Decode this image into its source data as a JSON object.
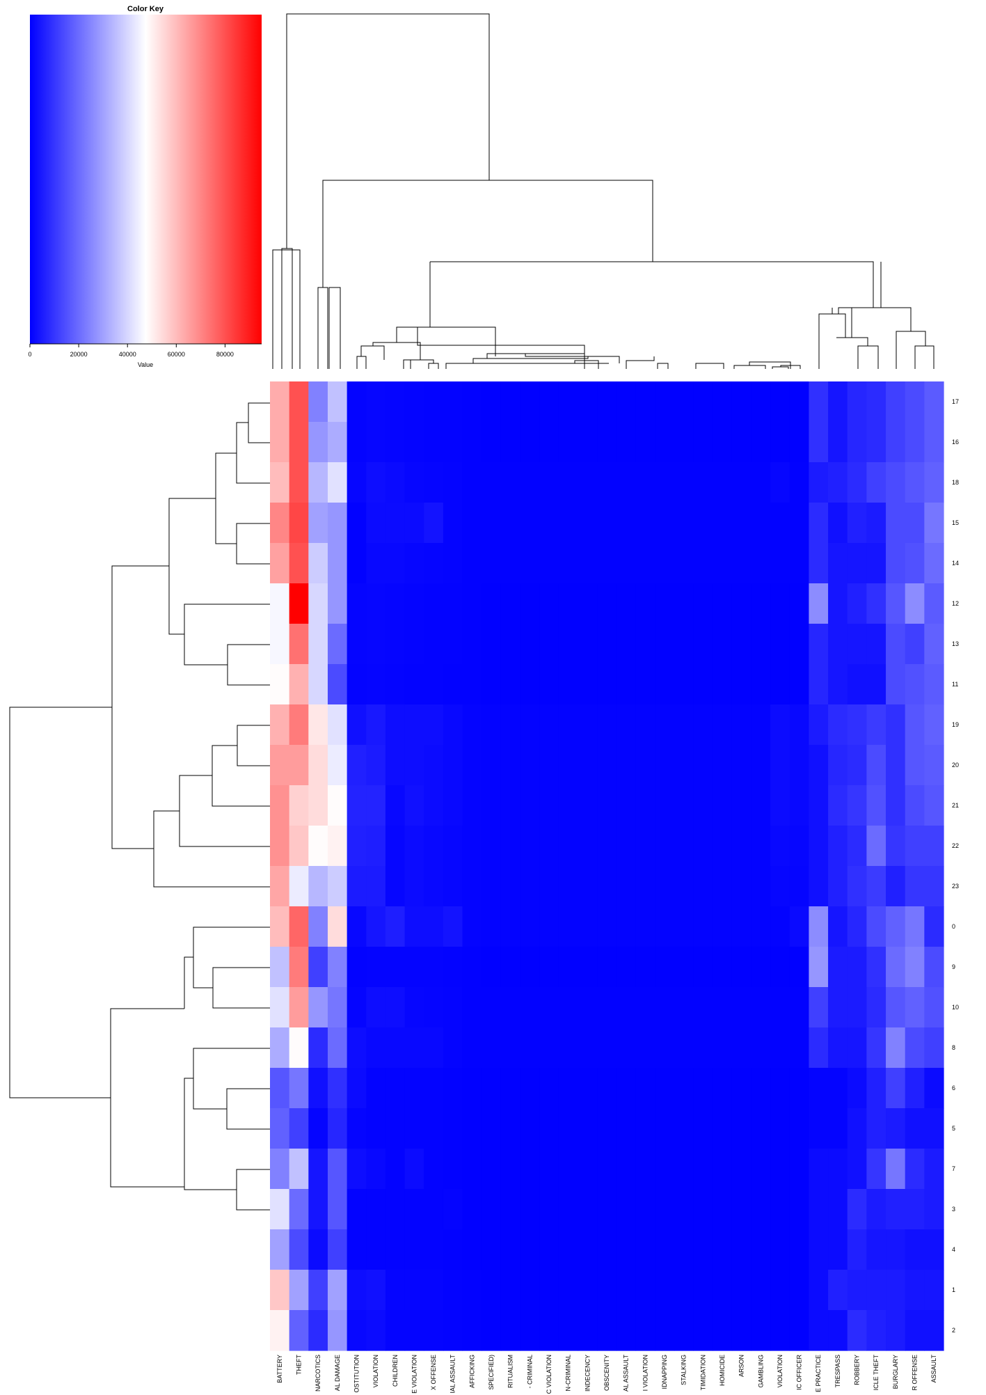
{
  "chart_data": {
    "type": "heatmap",
    "color_key": {
      "title": "Color Key",
      "xlabel": "Value",
      "ticks": [
        0,
        20000,
        40000,
        60000,
        80000
      ],
      "range": [
        0,
        95000
      ],
      "colors": [
        "#0000ff",
        "#ffffff",
        "#ff0000"
      ]
    },
    "columns": [
      "BATTERY",
      "THEFT",
      "NARCOTICS",
      "AL DAMAGE",
      "OSTITUTION",
      "VIOLATION",
      "CHILDREN",
      "E VIOLATION",
      "X OFFENSE",
      "IAL ASSAULT",
      "AFFICKING",
      "SPECIFIED)",
      "RITUALISM",
      "- CRIMINAL",
      "C VIOLATION",
      "N-CRIMINAL",
      "INDECENCY",
      "OBSCENITY",
      "AL ASSAULT",
      "I VIOLATION",
      "IDNAPPING",
      "STALKING",
      "TIMIDATION",
      "HOMICIDE",
      "ARSON",
      "GAMBLING",
      "VIOLATION",
      "IC OFFICER",
      "E PRACTICE",
      "TRESPASS",
      "ROBBERY",
      "ICLE THEFT",
      "BURGLARY",
      "R OFFENSE",
      "ASSAULT"
    ],
    "rows": [
      "17",
      "16",
      "18",
      "15",
      "14",
      "12",
      "13",
      "11",
      "19",
      "20",
      "21",
      "22",
      "23",
      "0",
      "9",
      "10",
      "8",
      "6",
      "5",
      "7",
      "3",
      "4",
      "1",
      "2"
    ],
    "values": [
      [
        63000,
        80000,
        24000,
        36000,
        800,
        1200,
        1000,
        800,
        600,
        500,
        300,
        200,
        200,
        200,
        200,
        200,
        200,
        200,
        200,
        200,
        200,
        200,
        200,
        200,
        200,
        200,
        200,
        200,
        9000,
        4000,
        7000,
        8000,
        12000,
        14000,
        17000
      ],
      [
        63000,
        80000,
        28000,
        32000,
        800,
        1200,
        1000,
        800,
        600,
        500,
        300,
        200,
        200,
        200,
        200,
        200,
        200,
        200,
        200,
        200,
        200,
        200,
        200,
        200,
        200,
        200,
        200,
        200,
        9000,
        4000,
        7000,
        8000,
        12000,
        14000,
        17000
      ],
      [
        60000,
        80000,
        34000,
        42000,
        1200,
        2500,
        1800,
        1200,
        900,
        700,
        400,
        300,
        300,
        300,
        300,
        300,
        300,
        300,
        300,
        300,
        300,
        300,
        300,
        300,
        300,
        300,
        1200,
        300,
        5000,
        6000,
        8000,
        12000,
        14000,
        16000,
        18000
      ],
      [
        70000,
        82000,
        30000,
        28000,
        400,
        2000,
        2000,
        2000,
        3500,
        800,
        400,
        300,
        300,
        300,
        300,
        300,
        300,
        300,
        300,
        300,
        300,
        300,
        300,
        300,
        300,
        300,
        300,
        300,
        8000,
        3000,
        6000,
        5000,
        14000,
        14000,
        22000
      ],
      [
        65000,
        80000,
        38000,
        28000,
        400,
        1500,
        1500,
        1200,
        900,
        700,
        400,
        300,
        300,
        300,
        300,
        300,
        300,
        300,
        300,
        300,
        300,
        300,
        300,
        300,
        300,
        300,
        300,
        300,
        8000,
        4000,
        4000,
        4000,
        14000,
        15000,
        20000
      ],
      [
        46000,
        95000,
        40000,
        28000,
        1000,
        1200,
        1000,
        800,
        600,
        500,
        300,
        200,
        200,
        200,
        200,
        200,
        200,
        200,
        200,
        200,
        200,
        200,
        200,
        200,
        200,
        200,
        200,
        200,
        26000,
        4000,
        6000,
        9000,
        16000,
        26000,
        17000
      ],
      [
        46000,
        74000,
        40000,
        20000,
        1000,
        1200,
        1000,
        800,
        600,
        500,
        300,
        200,
        200,
        200,
        200,
        200,
        200,
        200,
        200,
        200,
        200,
        200,
        200,
        200,
        200,
        200,
        200,
        200,
        7000,
        4000,
        4000,
        4000,
        14000,
        12000,
        18000
      ],
      [
        48000,
        62000,
        40000,
        14000,
        800,
        1000,
        800,
        600,
        500,
        400,
        300,
        200,
        200,
        200,
        200,
        200,
        200,
        200,
        200,
        200,
        200,
        200,
        200,
        200,
        200,
        200,
        200,
        200,
        7000,
        4000,
        3000,
        3000,
        14000,
        15000,
        17000
      ],
      [
        62000,
        72000,
        52000,
        42000,
        3000,
        4500,
        2500,
        2500,
        2500,
        1500,
        800,
        600,
        600,
        600,
        600,
        600,
        600,
        600,
        600,
        600,
        600,
        600,
        600,
        600,
        600,
        600,
        2000,
        1500,
        5000,
        8000,
        9000,
        11000,
        9000,
        16000,
        18000
      ],
      [
        66000,
        66000,
        54000,
        44000,
        6000,
        5000,
        2500,
        2500,
        2000,
        1500,
        800,
        600,
        600,
        600,
        600,
        600,
        600,
        600,
        600,
        600,
        600,
        600,
        600,
        600,
        600,
        600,
        2000,
        1500,
        3000,
        7000,
        8000,
        14000,
        9000,
        16000,
        17000
      ],
      [
        68000,
        56000,
        54000,
        48000,
        6500,
        6500,
        1500,
        3000,
        2000,
        1500,
        800,
        600,
        600,
        600,
        600,
        600,
        600,
        600,
        600,
        600,
        600,
        600,
        600,
        600,
        600,
        600,
        2000,
        1500,
        3000,
        8000,
        10000,
        15000,
        9000,
        14000,
        16000
      ],
      [
        68000,
        58000,
        48000,
        50000,
        6000,
        5500,
        1200,
        2000,
        1500,
        1200,
        700,
        500,
        500,
        500,
        500,
        500,
        500,
        500,
        500,
        500,
        500,
        500,
        500,
        500,
        500,
        500,
        1500,
        1200,
        3000,
        6000,
        8000,
        20000,
        10000,
        12000,
        12000
      ],
      [
        64000,
        44000,
        34000,
        38000,
        5000,
        5000,
        1200,
        2000,
        1500,
        1200,
        700,
        500,
        500,
        500,
        500,
        500,
        500,
        500,
        500,
        500,
        500,
        500,
        500,
        500,
        500,
        500,
        1200,
        1000,
        3000,
        6000,
        9000,
        11000,
        6000,
        10000,
        10000
      ],
      [
        60000,
        76000,
        24000,
        54000,
        1500,
        4000,
        5500,
        2500,
        2500,
        3500,
        800,
        600,
        600,
        600,
        600,
        600,
        600,
        600,
        600,
        600,
        600,
        600,
        600,
        600,
        600,
        600,
        600,
        1800,
        26000,
        4000,
        7000,
        14000,
        18000,
        22000,
        8000
      ],
      [
        36000,
        72000,
        12000,
        24000,
        600,
        700,
        800,
        800,
        800,
        500,
        300,
        200,
        200,
        200,
        200,
        200,
        200,
        200,
        200,
        200,
        200,
        200,
        200,
        200,
        200,
        200,
        200,
        200,
        28000,
        5000,
        5000,
        9000,
        20000,
        24000,
        14000
      ],
      [
        42000,
        66000,
        28000,
        22000,
        900,
        2500,
        2500,
        1200,
        900,
        700,
        400,
        300,
        300,
        300,
        300,
        300,
        300,
        300,
        300,
        300,
        300,
        300,
        300,
        300,
        300,
        300,
        300,
        300,
        12000,
        5000,
        5000,
        8000,
        16000,
        18000,
        15000
      ],
      [
        32000,
        48000,
        8000,
        20000,
        2500,
        1500,
        1500,
        1500,
        1500,
        700,
        400,
        300,
        300,
        300,
        300,
        300,
        300,
        300,
        300,
        300,
        300,
        300,
        300,
        300,
        300,
        300,
        300,
        300,
        8000,
        4000,
        4000,
        10000,
        24000,
        14000,
        12000
      ],
      [
        16000,
        22000,
        3000,
        9000,
        2000,
        500,
        500,
        500,
        500,
        400,
        200,
        200,
        200,
        200,
        200,
        200,
        200,
        200,
        200,
        200,
        200,
        200,
        200,
        200,
        200,
        200,
        200,
        200,
        800,
        800,
        2000,
        6000,
        12000,
        6000,
        2000
      ],
      [
        18000,
        12000,
        1000,
        7000,
        900,
        500,
        500,
        500,
        500,
        400,
        200,
        200,
        200,
        200,
        200,
        200,
        200,
        200,
        200,
        200,
        200,
        200,
        200,
        200,
        200,
        200,
        200,
        200,
        800,
        800,
        3000,
        6000,
        5000,
        3000,
        3000
      ],
      [
        24000,
        36000,
        4000,
        16000,
        2500,
        1500,
        500,
        2000,
        500,
        400,
        200,
        200,
        200,
        200,
        200,
        200,
        200,
        200,
        200,
        200,
        200,
        200,
        200,
        200,
        200,
        200,
        200,
        200,
        2000,
        2000,
        3000,
        10000,
        22000,
        8000,
        5000
      ],
      [
        42000,
        20000,
        4000,
        16000,
        500,
        500,
        500,
        500,
        500,
        700,
        200,
        200,
        200,
        200,
        200,
        200,
        200,
        200,
        200,
        200,
        200,
        200,
        200,
        200,
        200,
        200,
        200,
        200,
        2000,
        2000,
        8000,
        5000,
        6000,
        6000,
        5000
      ],
      [
        30000,
        14000,
        2000,
        12000,
        500,
        500,
        500,
        500,
        500,
        400,
        200,
        200,
        200,
        200,
        200,
        200,
        200,
        200,
        200,
        200,
        200,
        200,
        200,
        200,
        200,
        200,
        200,
        200,
        2000,
        2000,
        6000,
        4000,
        4000,
        3000,
        3000
      ],
      [
        58000,
        30000,
        12000,
        30000,
        2500,
        3000,
        1000,
        1000,
        900,
        600,
        300,
        200,
        200,
        200,
        200,
        200,
        200,
        200,
        200,
        200,
        200,
        200,
        200,
        200,
        200,
        200,
        200,
        200,
        2000,
        6000,
        5000,
        5000,
        5000,
        4000,
        4000
      ],
      [
        50000,
        18000,
        8000,
        28000,
        1500,
        2000,
        800,
        800,
        700,
        500,
        300,
        200,
        200,
        200,
        200,
        200,
        200,
        200,
        200,
        200,
        200,
        200,
        200,
        200,
        200,
        200,
        200,
        200,
        2000,
        2000,
        8000,
        6000,
        5000,
        3000,
        3000
      ]
    ]
  }
}
